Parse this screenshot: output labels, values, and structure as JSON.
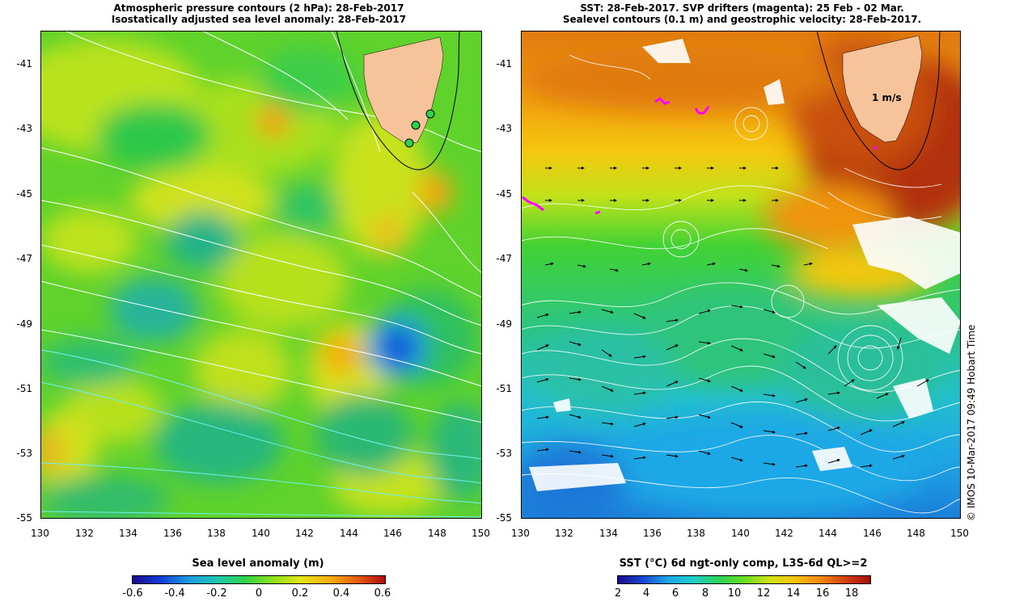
{
  "left_panel": {
    "title_line1": "Atmospheric pressure contours (2 hPa): 28-Feb-2017",
    "title_line2": "Isostatically adjusted sea level anomaly: 28-Feb-2017"
  },
  "right_panel": {
    "title_line1": "SST: 28-Feb-2017. SVP drifters (magenta): 25 Feb - 02 Mar.",
    "title_line2": "Sealevel contours (0.1 m) and geostrophic velocity: 28-Feb-2017.",
    "velocity_scale_label": "1 m/s"
  },
  "axes": {
    "lat_ticks": [
      "-41",
      "-43",
      "-45",
      "-47",
      "-49",
      "-51",
      "-53",
      "-55"
    ],
    "lon_ticks": [
      "130",
      "132",
      "134",
      "136",
      "138",
      "140",
      "142",
      "144",
      "146",
      "148",
      "150"
    ],
    "lat_range": [
      -55,
      -40
    ],
    "lon_range": [
      130,
      150
    ]
  },
  "left_colorbar": {
    "label": "Sea level anomaly (m)",
    "ticks": [
      "-0.6",
      "-0.4",
      "-0.2",
      "0",
      "0.2",
      "0.4",
      "0.6"
    ],
    "range": [
      -0.6,
      0.6
    ]
  },
  "right_colorbar": {
    "label": "SST (°C) 6d ngt-only comp, L3S-6d QL>=2",
    "ticks": [
      "2",
      "4",
      "6",
      "8",
      "10",
      "12",
      "14",
      "16",
      "18"
    ],
    "range": [
      1,
      19
    ]
  },
  "credit": "© IMOS 10-Mar-2017 09:49 Hobart Time",
  "colors": {
    "land": "#f7c39a",
    "sla_gradient": [
      "#1a0b8c",
      "#0f3fd6",
      "#1e9be0",
      "#21c6b0",
      "#2fd24a",
      "#8ee21c",
      "#e4e41a",
      "#f6b10e",
      "#ea5d10",
      "#b00d0d"
    ],
    "sst_gradient": [
      "#1a0b8c",
      "#1848d4",
      "#1ea7e6",
      "#1fcfc6",
      "#2ed25a",
      "#66dd20",
      "#cfe21a",
      "#f7c40c",
      "#f08a10",
      "#d6420e",
      "#a20d0d"
    ],
    "drifter": "#ff00ff"
  }
}
